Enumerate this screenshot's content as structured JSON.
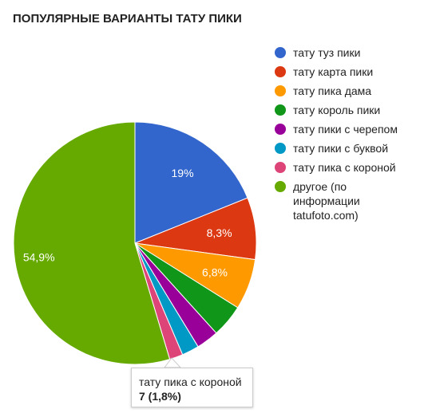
{
  "chart_data": {
    "type": "pie",
    "title": "ПОПУЛЯРНЫЕ ВАРИАНТЫ ТАТУ ПИКИ",
    "slices": [
      {
        "label": "тату туз пики",
        "value": 19,
        "display": "19%",
        "color": "#3366cc"
      },
      {
        "label": "тату карта пики",
        "value": 8.3,
        "display": "8,3%",
        "color": "#dc3912"
      },
      {
        "label": "тату пика дама",
        "value": 6.8,
        "display": "6,8%",
        "color": "#ff9900"
      },
      {
        "label": "тату король пики",
        "value": 4.4,
        "display": "",
        "color": "#109618"
      },
      {
        "label": "тату пики с черепом",
        "value": 3.0,
        "display": "",
        "color": "#990099"
      },
      {
        "label": "тату пики с буквой",
        "value": 2.3,
        "display": "",
        "color": "#0099c6"
      },
      {
        "label": "тату пика с короной",
        "value": 1.8,
        "display": "",
        "color": "#dd4477"
      },
      {
        "label": "другое (по информации tatufoto.com)",
        "value": 54.9,
        "display": "54,9%",
        "color": "#66aa00"
      }
    ],
    "legend_position": "right"
  },
  "legend_lines": [
    [
      "тату туз пики"
    ],
    [
      "тату карта пики"
    ],
    [
      "тату пика дама"
    ],
    [
      "тату король пики"
    ],
    [
      "тату пики с черепом"
    ],
    [
      "тату пики с буквой"
    ],
    [
      "тату пика с короной"
    ],
    [
      "другое (по",
      "информации",
      "tatufoto.com)"
    ]
  ],
  "tooltip": {
    "label": "тату пика с короной",
    "value_text": "7 (1,8%)"
  }
}
